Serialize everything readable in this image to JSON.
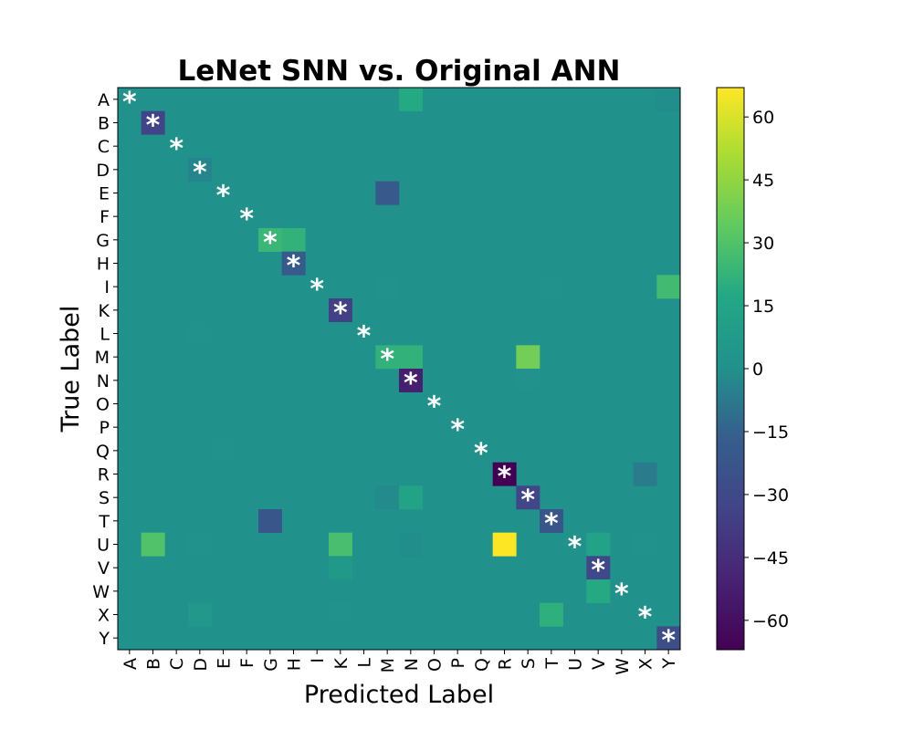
{
  "chart_data": {
    "type": "heatmap",
    "title": "LeNet SNN vs. Original ANN",
    "xlabel": "Predicted Label",
    "ylabel": "True Label",
    "x_categories": [
      "A",
      "B",
      "C",
      "D",
      "E",
      "F",
      "G",
      "H",
      "I",
      "K",
      "L",
      "M",
      "N",
      "O",
      "P",
      "Q",
      "R",
      "S",
      "T",
      "U",
      "V",
      "W",
      "X",
      "Y"
    ],
    "y_categories": [
      "A",
      "B",
      "C",
      "D",
      "E",
      "F",
      "G",
      "H",
      "I",
      "K",
      "L",
      "M",
      "N",
      "O",
      "P",
      "Q",
      "R",
      "S",
      "T",
      "U",
      "V",
      "W",
      "X",
      "Y"
    ],
    "diagonal_marker": "*",
    "colormap": "viridis",
    "vmin": -67,
    "vmax": 67,
    "colorbar_ticks": [
      60,
      45,
      30,
      15,
      0,
      -15,
      -30,
      -45,
      -60
    ],
    "colorbar_tick_labels": [
      "60",
      "45",
      "30",
      "15",
      "0",
      "−15",
      "−30",
      "−45",
      "−60"
    ],
    "cells": [
      {
        "row": "A",
        "col": "N",
        "value": 18
      },
      {
        "row": "A",
        "col": "Y",
        "value": -1
      },
      {
        "row": "B",
        "col": "B",
        "value": -33
      },
      {
        "row": "D",
        "col": "D",
        "value": -4
      },
      {
        "row": "E",
        "col": "M",
        "value": -20
      },
      {
        "row": "G",
        "col": "G",
        "value": 24
      },
      {
        "row": "G",
        "col": "H",
        "value": 22
      },
      {
        "row": "H",
        "col": "H",
        "value": -19
      },
      {
        "row": "I",
        "col": "M",
        "value": 1
      },
      {
        "row": "I",
        "col": "T",
        "value": 1
      },
      {
        "row": "I",
        "col": "Y",
        "value": 26
      },
      {
        "row": "K",
        "col": "K",
        "value": -35
      },
      {
        "row": "L",
        "col": "D",
        "value": 1
      },
      {
        "row": "M",
        "col": "M",
        "value": 22
      },
      {
        "row": "M",
        "col": "N",
        "value": 22
      },
      {
        "row": "M",
        "col": "S",
        "value": 38
      },
      {
        "row": "N",
        "col": "N",
        "value": -52
      },
      {
        "row": "N",
        "col": "S",
        "value": 1
      },
      {
        "row": "Q",
        "col": "E",
        "value": 1
      },
      {
        "row": "R",
        "col": "R",
        "value": -67
      },
      {
        "row": "R",
        "col": "X",
        "value": -7
      },
      {
        "row": "S",
        "col": "M",
        "value": -2
      },
      {
        "row": "S",
        "col": "N",
        "value": 14
      },
      {
        "row": "S",
        "col": "S",
        "value": -32
      },
      {
        "row": "T",
        "col": "G",
        "value": -22
      },
      {
        "row": "T",
        "col": "T",
        "value": -22
      },
      {
        "row": "U",
        "col": "B",
        "value": 30
      },
      {
        "row": "U",
        "col": "D",
        "value": 1
      },
      {
        "row": "U",
        "col": "K",
        "value": 28
      },
      {
        "row": "U",
        "col": "N",
        "value": -1
      },
      {
        "row": "U",
        "col": "R",
        "value": 67
      },
      {
        "row": "U",
        "col": "V",
        "value": 13
      },
      {
        "row": "U",
        "col": "X",
        "value": 1
      },
      {
        "row": "V",
        "col": "K",
        "value": 6
      },
      {
        "row": "V",
        "col": "V",
        "value": -31
      },
      {
        "row": "W",
        "col": "V",
        "value": 18
      },
      {
        "row": "X",
        "col": "D",
        "value": 5
      },
      {
        "row": "X",
        "col": "K",
        "value": 1
      },
      {
        "row": "X",
        "col": "T",
        "value": 21
      },
      {
        "row": "Y",
        "col": "Y",
        "value": -27
      }
    ]
  }
}
